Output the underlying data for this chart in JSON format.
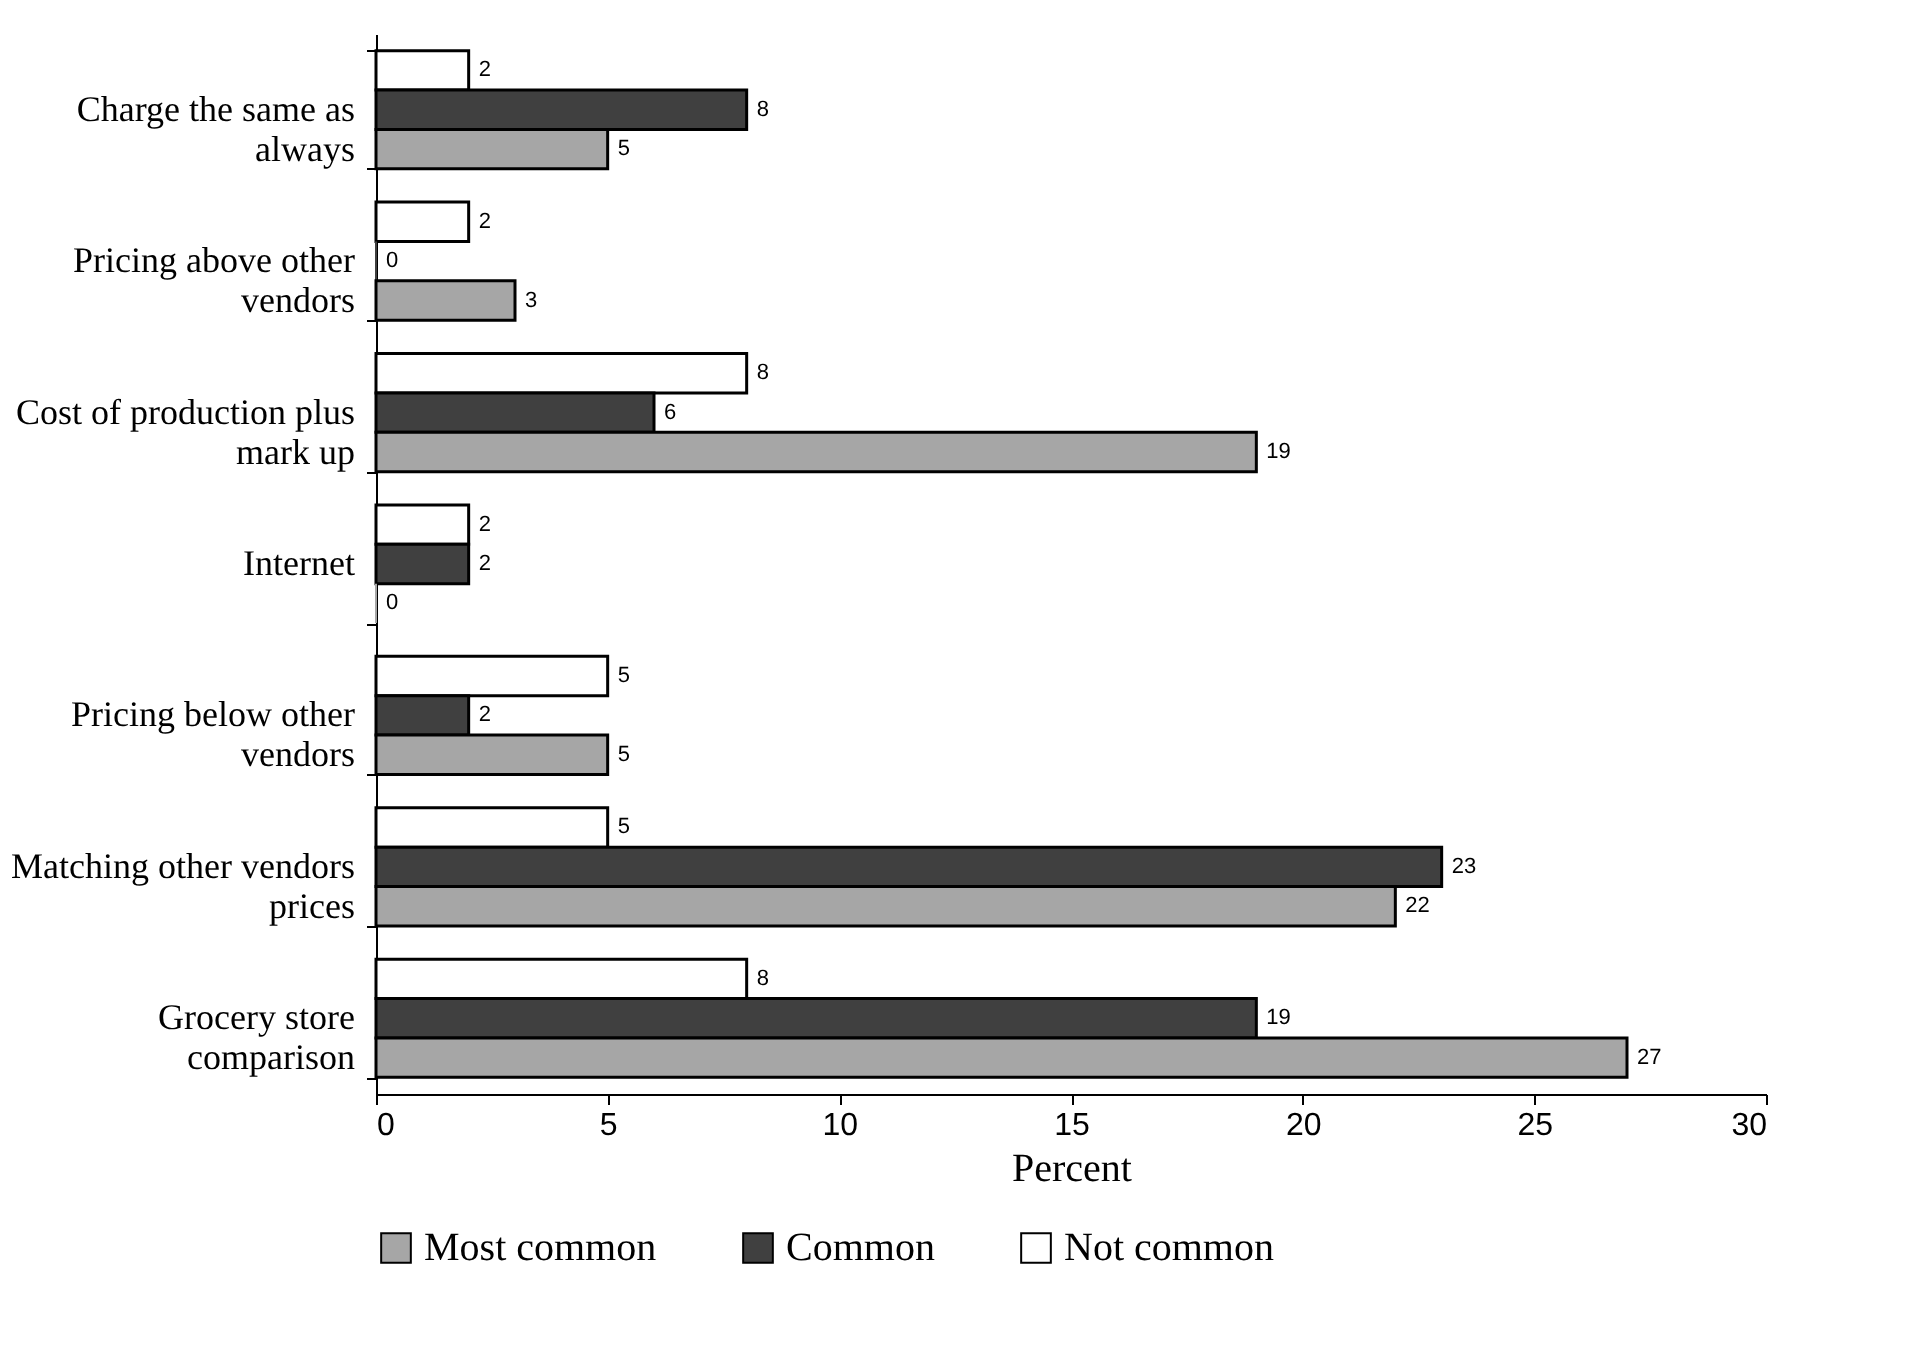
{
  "chart_data": {
    "type": "bar",
    "orientation": "horizontal",
    "xlabel": "Percent",
    "categories": [
      "Charge the same as always",
      "Pricing above other vendors",
      "Cost of production plus mark up",
      "Internet",
      "Pricing below other vendors",
      "Matching other vendors prices",
      "Grocery store comparison"
    ],
    "series": [
      {
        "name": "Not common",
        "color": "#ffffff",
        "values": [
          2,
          2,
          8,
          2,
          5,
          5,
          8
        ]
      },
      {
        "name": "Common",
        "color": "#404040",
        "values": [
          8,
          0,
          6,
          2,
          2,
          23,
          19
        ]
      },
      {
        "name": "Most common",
        "color": "#a6a6a6",
        "values": [
          5,
          3,
          19,
          0,
          5,
          22,
          27
        ]
      }
    ],
    "xlim": [
      0,
      30
    ],
    "xticks": [
      0,
      5,
      10,
      15,
      20,
      25,
      30
    ],
    "grid": false,
    "legend": "bottom",
    "data_labels": true
  }
}
